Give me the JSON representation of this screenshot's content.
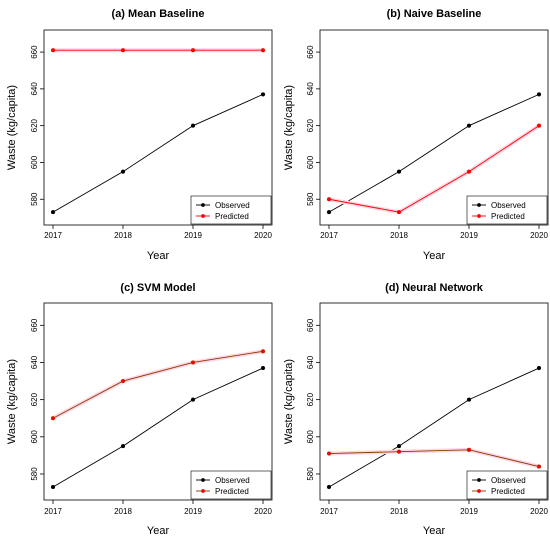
{
  "chart_data": [
    {
      "type": "line",
      "title": "(a) Mean Baseline",
      "xlabel": "Year",
      "ylabel": "Waste (kg/capita)",
      "x": [
        2017,
        2018,
        2019,
        2020
      ],
      "ylim": [
        566,
        672
      ],
      "yticks": [
        580,
        600,
        620,
        640,
        660
      ],
      "legend": "bottom-right",
      "series": [
        {
          "name": "Observed",
          "values": [
            573,
            595,
            620,
            637
          ],
          "color": "#000000"
        },
        {
          "name": "Predicted",
          "values": [
            661,
            661,
            661,
            661
          ],
          "color": "#ff0000"
        }
      ]
    },
    {
      "type": "line",
      "title": "(b) Naive Baseline",
      "xlabel": "Year",
      "ylabel": "Waste (kg/capita)",
      "x": [
        2017,
        2018,
        2019,
        2020
      ],
      "ylim": [
        566,
        672
      ],
      "yticks": [
        580,
        600,
        620,
        640,
        660
      ],
      "legend": "bottom-right",
      "series": [
        {
          "name": "Observed",
          "values": [
            573,
            595,
            620,
            637
          ],
          "color": "#000000"
        },
        {
          "name": "Predicted",
          "values": [
            580,
            573,
            595,
            620
          ],
          "color": "#ff0000"
        }
      ]
    },
    {
      "type": "line",
      "title": "(c) SVM Model",
      "xlabel": "Year",
      "ylabel": "Waste (kg/capita)",
      "x": [
        2017,
        2018,
        2019,
        2020
      ],
      "ylim": [
        566,
        672
      ],
      "yticks": [
        580,
        600,
        620,
        640,
        660
      ],
      "legend": "bottom-right",
      "series": [
        {
          "name": "Observed",
          "values": [
            573,
            595,
            620,
            637
          ],
          "color": "#000000"
        },
        {
          "name": "Predicted",
          "values": [
            610,
            630,
            640,
            646
          ],
          "color": "#8b3a00"
        }
      ]
    },
    {
      "type": "line",
      "title": "(d) Neural Network",
      "xlabel": "Year",
      "ylabel": "Waste (kg/capita)",
      "x": [
        2017,
        2018,
        2019,
        2020
      ],
      "ylim": [
        566,
        672
      ],
      "yticks": [
        580,
        600,
        620,
        640,
        660
      ],
      "legend": "bottom-right",
      "series": [
        {
          "name": "Observed",
          "values": [
            573,
            595,
            620,
            637
          ],
          "color": "#000000"
        },
        {
          "name": "Predicted",
          "values": [
            591,
            592,
            593,
            584
          ],
          "color": "#8b3a00"
        }
      ]
    }
  ]
}
